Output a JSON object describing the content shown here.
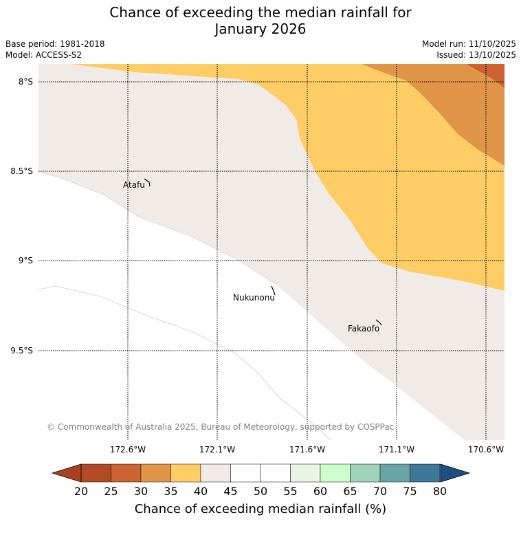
{
  "title_line1": "Chance of exceeding the median rainfall for",
  "title_line2": "January 2026",
  "base_period": "Base period: 1981-2018",
  "model": "Model: ACCESS-S2",
  "model_run": "Model run: 11/10/2025",
  "issued": "Issued: 13/10/2025",
  "lat_ticks": [
    "8°S",
    "8.5°S",
    "9°S",
    "9.5°S"
  ],
  "lon_ticks": [
    "172.6°W",
    "172.1°W",
    "171.6°W",
    "171.1°W",
    "170.6°W"
  ],
  "islands": [
    {
      "name": "Atafu"
    },
    {
      "name": "Nukunonu"
    },
    {
      "name": "Fakaofo"
    }
  ],
  "copyright": "© Commonwealth of Australia 2025, Bureau of Meteorology, supported by COSPPac",
  "colorbar": {
    "ticks": [
      "20",
      "25",
      "30",
      "35",
      "40",
      "45",
      "50",
      "55",
      "60",
      "65",
      "70",
      "75",
      "80"
    ],
    "colors": [
      "#b14b25",
      "#cb6432",
      "#e19548",
      "#ffcd66",
      "#f0ebe6",
      "#ffffff",
      "#ffffff",
      "#eaf5e8",
      "#ccffcc",
      "#9fd3bc",
      "#6ba4a6",
      "#3e7897"
    ],
    "under_color": "#a8421e",
    "over_color": "#1c4f82",
    "label": "Chance of exceeding median rainfall (%)"
  }
}
